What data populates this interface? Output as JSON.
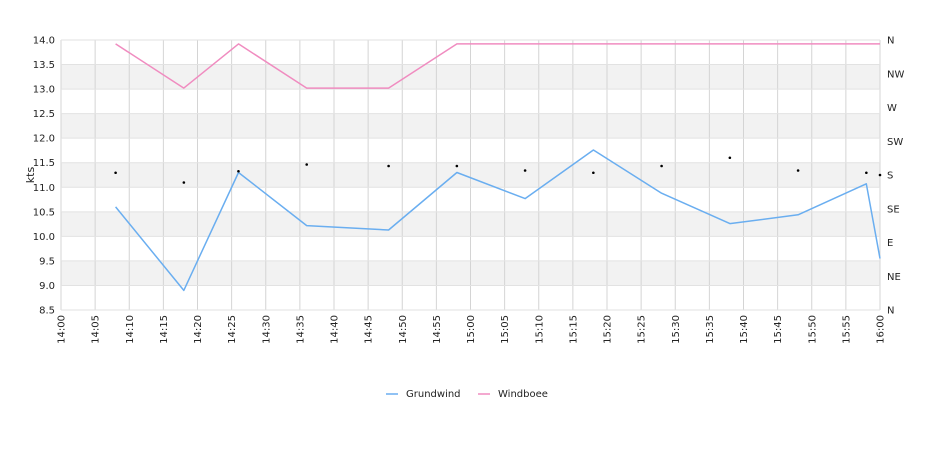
{
  "chart_data": {
    "type": "line",
    "ylabel": "kts",
    "ylim": [
      8.5,
      14.0
    ],
    "y_ticks": [
      "14.0",
      "13.5",
      "13.0",
      "12.5",
      "12.0",
      "11.5",
      "11.0",
      "10.5",
      "10.0",
      "9.5",
      "9.0",
      "8.5"
    ],
    "x_ticks": [
      "14:00",
      "14:05",
      "14:10",
      "14:15",
      "14:20",
      "14:25",
      "14:30",
      "14:35",
      "14:40",
      "14:45",
      "14:50",
      "14:55",
      "15:00",
      "15:05",
      "15:10",
      "15:15",
      "15:20",
      "15:25",
      "15:30",
      "15:35",
      "15:40",
      "15:45",
      "15:50",
      "15:55",
      "16:00"
    ],
    "y2_ticks": [
      "N",
      "NW",
      "W",
      "SW",
      "S",
      "SE",
      "E",
      "NE",
      "N"
    ],
    "grid": true,
    "legend_position": "bottom",
    "series": [
      {
        "name": "Grundwind",
        "color": "#6aaef0",
        "points": [
          {
            "x": "14:08",
            "y": 10.6
          },
          {
            "x": "14:18",
            "y": 8.9
          },
          {
            "x": "14:26",
            "y": 11.3
          },
          {
            "x": "14:36",
            "y": 10.22
          },
          {
            "x": "14:48",
            "y": 10.13
          },
          {
            "x": "14:58",
            "y": 11.3
          },
          {
            "x": "15:08",
            "y": 10.77
          },
          {
            "x": "15:18",
            "y": 11.76
          },
          {
            "x": "15:28",
            "y": 10.88
          },
          {
            "x": "15:38",
            "y": 10.26
          },
          {
            "x": "15:48",
            "y": 10.44
          },
          {
            "x": "15:58",
            "y": 11.07
          },
          {
            "x": "16:00",
            "y": 9.55
          }
        ]
      },
      {
        "name": "Windboee",
        "color": "#f08cc0",
        "points": [
          {
            "x": "14:08",
            "y": 13.92
          },
          {
            "x": "14:18",
            "y": 13.02
          },
          {
            "x": "14:26",
            "y": 13.92
          },
          {
            "x": "14:36",
            "y": 13.02
          },
          {
            "x": "14:48",
            "y": 13.02
          },
          {
            "x": "14:58",
            "y": 13.92
          },
          {
            "x": "15:08",
            "y": 13.92
          },
          {
            "x": "15:18",
            "y": 13.92
          },
          {
            "x": "15:28",
            "y": 13.92
          },
          {
            "x": "15:38",
            "y": 13.92
          },
          {
            "x": "15:48",
            "y": 13.92
          },
          {
            "x": "15:58",
            "y": 13.92
          },
          {
            "x": "16:00",
            "y": 13.92
          }
        ]
      }
    ],
    "direction_markers": [
      {
        "x": "14:08",
        "dir_deg": 183
      },
      {
        "x": "14:18",
        "dir_deg": 170
      },
      {
        "x": "14:26",
        "dir_deg": 185
      },
      {
        "x": "14:36",
        "dir_deg": 194
      },
      {
        "x": "14:48",
        "dir_deg": 192
      },
      {
        "x": "14:58",
        "dir_deg": 192
      },
      {
        "x": "15:08",
        "dir_deg": 186
      },
      {
        "x": "15:18",
        "dir_deg": 183
      },
      {
        "x": "15:28",
        "dir_deg": 192
      },
      {
        "x": "15:38",
        "dir_deg": 203
      },
      {
        "x": "15:48",
        "dir_deg": 186
      },
      {
        "x": "15:58",
        "dir_deg": 183
      },
      {
        "x": "16:00",
        "dir_deg": 180
      }
    ]
  }
}
